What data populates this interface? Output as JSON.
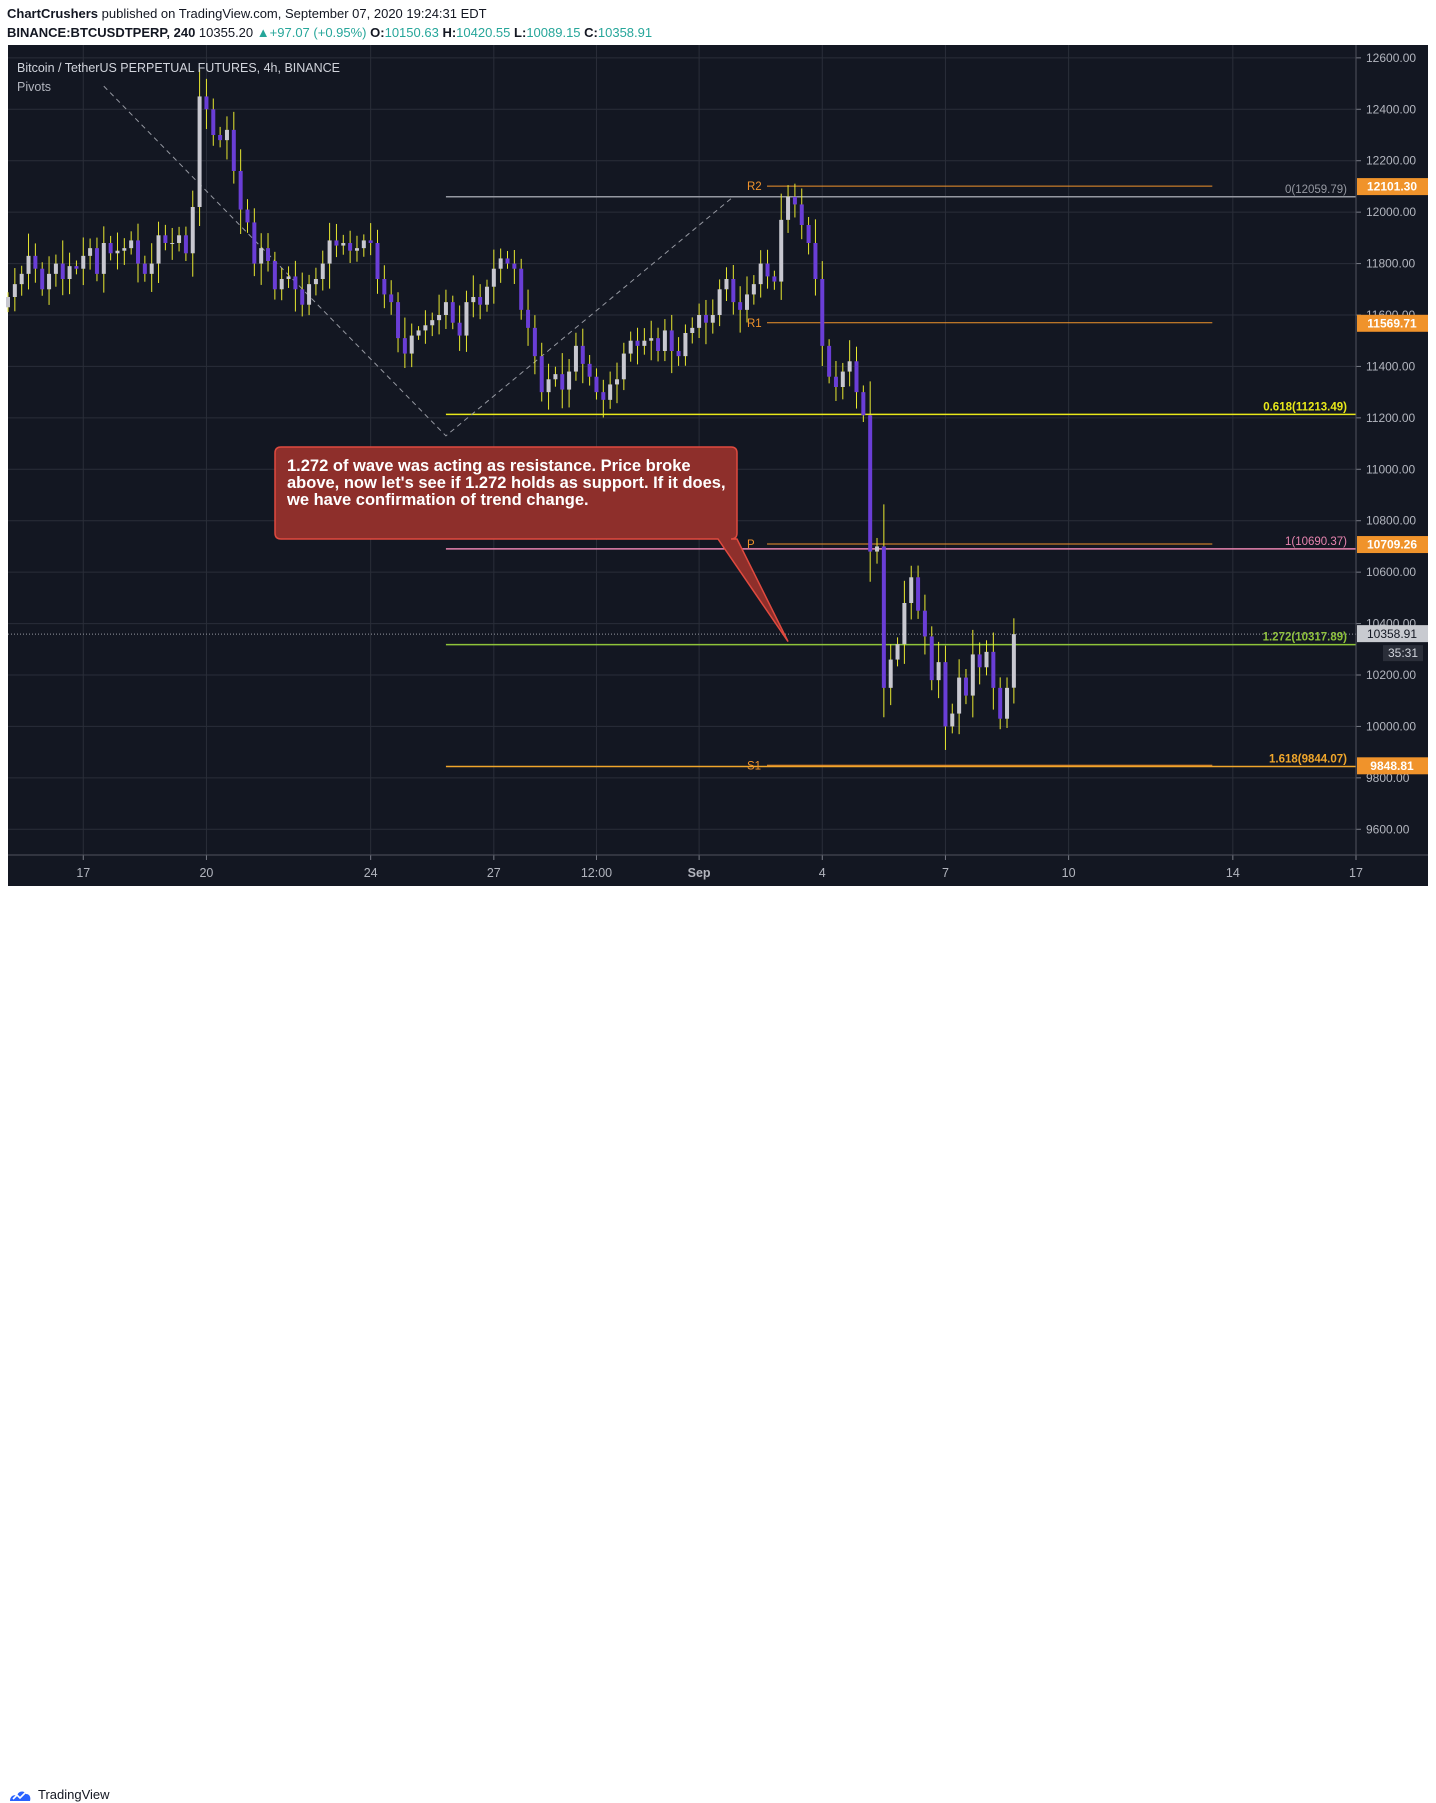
{
  "header": {
    "publisher": "ChartCrushers",
    "published_text": "published on TradingView.com, September 07, 2020 19:24:31 EDT",
    "symbol": "BINANCE:BTCUSDTPERP, 240",
    "last": "10355.20",
    "change": "+97.07 (+0.95%)",
    "o_label": "O:",
    "o": "10150.63",
    "h_label": "H:",
    "h": "10420.55",
    "l_label": "L:",
    "l": "10089.15",
    "c_label": "C:",
    "c": "10358.91"
  },
  "legend": {
    "title": "Bitcoin / TetherUS PERPETUAL FUTURES, 4h, BINANCE",
    "indicator": "Pivots"
  },
  "footer": {
    "brand": "TradingView"
  },
  "colors": {
    "background": "#131722",
    "grid": "#2a2e39",
    "bull": "#c8c8d0",
    "bear": "#6a3ed6",
    "wick": "#e8e830",
    "pivot": "#f0932b",
    "fib_gray": "#9598a1",
    "fib_yellow": "#e8e81a",
    "fib_pink": "#e884b0",
    "fib_green": "#8fc43a",
    "fib_orange": "#f0a62b",
    "callout_fill": "#8e2f2b",
    "callout_border": "#e04a3f"
  },
  "chart_data": {
    "type": "candlestick",
    "title": "Bitcoin / TetherUS PERPETUAL FUTURES, 4h, BINANCE",
    "ylim": [
      9500,
      12650
    ],
    "x_range": [
      "2020-08-15 04:00",
      "2020-09-17 00:00"
    ],
    "y_ticks": [
      "9600.00",
      "9800.00",
      "10000.00",
      "10200.00",
      "10400.00",
      "10600.00",
      "10800.00",
      "11000.00",
      "11200.00",
      "11400.00",
      "11600.00",
      "11800.00",
      "12000.00",
      "12200.00",
      "12400.00",
      "12600.00"
    ],
    "x_ticks": [
      {
        "label": "17",
        "date": "2020-08-17"
      },
      {
        "label": "20",
        "date": "2020-08-20"
      },
      {
        "label": "24",
        "date": "2020-08-24"
      },
      {
        "label": "27",
        "date": "2020-08-27"
      },
      {
        "label": "12:00",
        "date": "2020-08-29 12:00"
      },
      {
        "label": "Sep",
        "date": "2020-09-01"
      },
      {
        "label": "4",
        "date": "2020-09-04"
      },
      {
        "label": "7",
        "date": "2020-09-07"
      },
      {
        "label": "10",
        "date": "2020-09-10"
      },
      {
        "label": "14",
        "date": "2020-09-14"
      },
      {
        "label": "17",
        "date": "2020-09-17"
      }
    ],
    "pivots": [
      {
        "label": "R2",
        "value": 12101.3,
        "price_label": "12101.30"
      },
      {
        "label": "R1",
        "value": 11569.71,
        "price_label": "11569.71"
      },
      {
        "label": "P",
        "value": 10709.26,
        "price_label": "10709.26"
      },
      {
        "label": "S1",
        "value": 9848.81,
        "price_label": "9848.81"
      }
    ],
    "fib_levels": [
      {
        "label": "0(12059.79)",
        "value": 12059.79,
        "color": "#9598a1"
      },
      {
        "label": "0.618(11213.49)",
        "value": 11213.49,
        "color": "#e8e81a"
      },
      {
        "label": "1(10690.37)",
        "value": 10690.37,
        "color": "#e884b0"
      },
      {
        "label": "1.272(10317.89)",
        "value": 10317.89,
        "color": "#8fc43a"
      },
      {
        "label": "1.618(9844.07)",
        "value": 9844.07,
        "color": "#f0a62b"
      }
    ],
    "current_price": {
      "value": 10358.91,
      "label": "10358.91",
      "countdown": "35:31"
    },
    "zigzag": [
      {
        "date": "2020-08-17 12:00",
        "value": 12490
      },
      {
        "date": "2020-08-25 20:00",
        "value": 11130
      },
      {
        "date": "2020-09-01 20:00",
        "value": 12060
      }
    ],
    "fib_start": "2020-08-25 20:00",
    "pivot_start": "2020-09-02 04:00",
    "pivot_end": "2020-09-13 12:00",
    "annotation": {
      "text": "1.272 of wave was acting as resistance. Price broke above, now let's see if 1.272 holds as support. If it does, we have confirmation of trend change.",
      "target_date": "2020-09-03 04:00",
      "target_value": 10330
    },
    "candles": {
      "start": "2020-08-15 04:00",
      "interval_hours": 4,
      "closes": [
        11670,
        11720,
        11760,
        11830,
        11780,
        11700,
        11760,
        11800,
        11740,
        11790,
        11780,
        11830,
        11860,
        11760,
        11880,
        11840,
        11850,
        11860,
        11890,
        11800,
        11760,
        11800,
        11910,
        11880,
        11880,
        11910,
        11840,
        12020,
        12450,
        12400,
        12300,
        12280,
        12320,
        12160,
        12010,
        11960,
        11800,
        11860,
        11810,
        11700,
        11740,
        11750,
        11700,
        11640,
        11720,
        11740,
        11800,
        11890,
        11870,
        11880,
        11850,
        11860,
        11890,
        11880,
        11740,
        11680,
        11650,
        11510,
        11450,
        11520,
        11540,
        11560,
        11580,
        11600,
        11650,
        11570,
        11520,
        11650,
        11670,
        11640,
        11710,
        11780,
        11820,
        11800,
        11780,
        11620,
        11550,
        11440,
        11300,
        11350,
        11370,
        11310,
        11380,
        11480,
        11410,
        11360,
        11300,
        11270,
        11330,
        11350,
        11450,
        11500,
        11480,
        11500,
        11510,
        11460,
        11540,
        11460,
        11440,
        11530,
        11550,
        11600,
        11570,
        11600,
        11700,
        11740,
        11650,
        11620,
        11680,
        11720,
        11800,
        11750,
        11730,
        11970,
        12060,
        12030,
        11950,
        11880,
        11740,
        11480,
        11360,
        11320,
        11380,
        11420,
        11300,
        11210,
        10680,
        10700,
        10150,
        10260,
        10320,
        10480,
        10580,
        10450,
        10350,
        10180,
        10250,
        10000,
        10050,
        10190,
        10120,
        10280,
        10230,
        10290,
        10150,
        10030,
        10150,
        10358.91
      ],
      "last_open": 10150.63,
      "last_high": 10420.55,
      "last_low": 10089.15
    }
  }
}
